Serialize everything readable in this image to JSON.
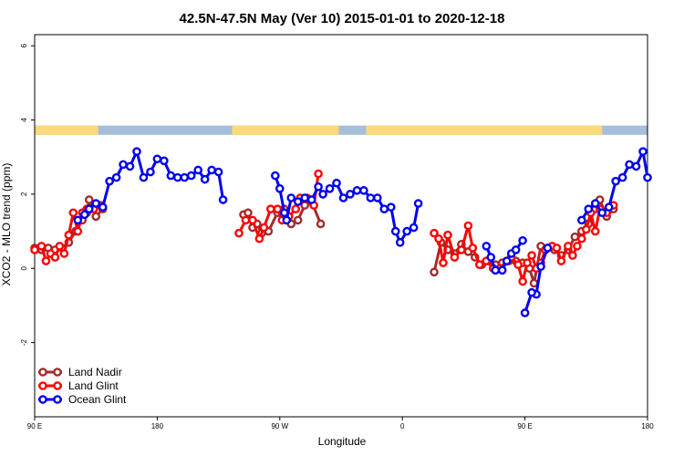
{
  "chart_data": {
    "type": "line",
    "title": "42.5N-47.5N May (Ver 10)   2015-01-01 to 2020-12-18",
    "xlabel": "Longitude",
    "ylabel": "XCO2 - MLO trend (ppm)",
    "xlim": [
      -90,
      180
    ],
    "ylim": [
      -4,
      6.3
    ],
    "x_ticks": [
      {
        "value": -90,
        "label": "90 E"
      },
      {
        "value": -36,
        "label": "180"
      },
      {
        "value": 18,
        "label": "90 W"
      },
      {
        "value": 72,
        "label": "0"
      },
      {
        "value": 126,
        "label": "90 E"
      },
      {
        "value": 180,
        "label": "180"
      }
    ],
    "y_ticks": [
      {
        "value": -2,
        "label": "-2"
      },
      {
        "value": 0,
        "label": "0"
      },
      {
        "value": 2,
        "label": "2"
      },
      {
        "value": 4,
        "label": "4"
      },
      {
        "value": 6,
        "label": "6"
      }
    ],
    "land_mask_band": {
      "y_range": [
        3.6,
        3.85
      ],
      "ocean_color": "#a6bddb",
      "land_color": "#fcd97a",
      "land_segments": [
        [
          -90,
          -62
        ],
        [
          -3,
          44
        ],
        [
          56,
          160
        ]
      ]
    },
    "legend_position": "bottom-left",
    "series": [
      {
        "name": "Land Nadir",
        "color": "#a52a2a",
        "segments": [
          [
            [
              -90,
              0.55
            ],
            [
              -87,
              0.5
            ],
            [
              -84,
              0.55
            ],
            [
              -81,
              0.5
            ],
            [
              -78,
              0.55
            ],
            [
              -75,
              0.7
            ],
            [
              -72,
              1.0
            ],
            [
              -69,
              1.3
            ],
            [
              -67,
              1.5
            ],
            [
              -66,
              1.85
            ],
            [
              -63,
              1.4
            ],
            [
              -60,
              1.6
            ]
          ],
          [
            [
              2,
              1.45
            ],
            [
              4,
              1.5
            ],
            [
              6,
              1.1
            ],
            [
              8,
              1.2
            ],
            [
              10,
              0.95
            ],
            [
              13,
              1.0
            ],
            [
              17,
              1.5
            ],
            [
              20,
              1.6
            ],
            [
              23,
              1.2
            ],
            [
              26,
              1.3
            ],
            [
              29,
              1.7
            ],
            [
              32,
              1.8
            ],
            [
              36,
              1.2
            ]
          ],
          [
            [
              86,
              -0.1
            ],
            [
              89,
              0.7
            ],
            [
              92,
              0.5
            ],
            [
              95,
              0.4
            ],
            [
              98,
              0.65
            ],
            [
              101,
              0.45
            ],
            [
              104,
              0.3
            ],
            [
              107,
              0.1
            ],
            [
              110,
              0.2
            ],
            [
              113,
              0.1
            ],
            [
              116,
              0.15
            ],
            [
              119,
              0.2
            ],
            [
              122,
              0.2
            ],
            [
              125,
              0.15
            ],
            [
              128,
              0.0
            ],
            [
              130,
              -0.4
            ],
            [
              133,
              0.6
            ],
            [
              136,
              0.55
            ],
            [
              139,
              0.5
            ],
            [
              142,
              0.35
            ],
            [
              145,
              0.5
            ],
            [
              148,
              0.85
            ],
            [
              151,
              1.0
            ],
            [
              154,
              1.2
            ],
            [
              157,
              1.6
            ],
            [
              159,
              1.85
            ],
            [
              162,
              1.4
            ],
            [
              165,
              1.6
            ]
          ]
        ]
      },
      {
        "name": "Land Glint",
        "color": "#ff0000",
        "segments": [
          [
            [
              -90,
              0.5
            ],
            [
              -87,
              0.6
            ],
            [
              -85,
              0.2
            ],
            [
              -83,
              0.4
            ],
            [
              -81,
              0.3
            ],
            [
              -79,
              0.6
            ],
            [
              -77,
              0.4
            ],
            [
              -75,
              0.9
            ],
            [
              -73,
              1.5
            ],
            [
              -71,
              1.0
            ],
            [
              -69,
              1.5
            ],
            [
              -67,
              1.6
            ],
            [
              -64,
              1.6
            ],
            [
              -61,
              1.7
            ]
          ],
          [
            [
              0,
              0.95
            ],
            [
              3,
              1.3
            ],
            [
              6,
              1.3
            ],
            [
              9,
              0.8
            ],
            [
              11,
              1.1
            ],
            [
              14,
              1.6
            ],
            [
              17,
              1.6
            ],
            [
              19,
              1.3
            ],
            [
              22,
              1.4
            ],
            [
              25,
              1.6
            ],
            [
              27,
              1.9
            ],
            [
              30,
              1.9
            ],
            [
              33,
              1.7
            ],
            [
              35,
              2.55
            ]
          ],
          [
            [
              86,
              0.95
            ],
            [
              88,
              0.8
            ],
            [
              90,
              0.15
            ],
            [
              92,
              0.9
            ],
            [
              95,
              0.3
            ],
            [
              98,
              0.5
            ],
            [
              101,
              1.15
            ],
            [
              103,
              0.55
            ],
            [
              106,
              0.1
            ],
            [
              109,
              0.2
            ],
            [
              112,
              0.0
            ],
            [
              115,
              0.0
            ],
            [
              118,
              0.2
            ],
            [
              120,
              0.3
            ],
            [
              123,
              0.1
            ],
            [
              125,
              -0.35
            ],
            [
              127,
              0.15
            ],
            [
              129,
              0.35
            ],
            [
              131,
              0.0
            ],
            [
              133,
              0.15
            ],
            [
              135,
              0.5
            ],
            [
              138,
              0.6
            ],
            [
              140,
              0.55
            ],
            [
              142,
              0.2
            ],
            [
              145,
              0.6
            ],
            [
              147,
              0.35
            ],
            [
              149,
              0.6
            ],
            [
              151,
              0.8
            ],
            [
              153,
              1.05
            ],
            [
              155,
              1.5
            ],
            [
              157,
              1.0
            ],
            [
              159,
              1.6
            ],
            [
              162,
              1.5
            ],
            [
              165,
              1.7
            ]
          ]
        ]
      },
      {
        "name": "Ocean Glint",
        "color": "#0000ee",
        "segments": [
          [
            [
              -71,
              1.3
            ],
            [
              -68,
              1.45
            ],
            [
              -66,
              1.6
            ],
            [
              -63,
              1.75
            ],
            [
              -60,
              1.65
            ],
            [
              -57,
              2.35
            ],
            [
              -54,
              2.45
            ],
            [
              -51,
              2.8
            ],
            [
              -48,
              2.75
            ],
            [
              -45,
              3.15
            ],
            [
              -42,
              2.45
            ],
            [
              -39,
              2.6
            ],
            [
              -36,
              2.95
            ],
            [
              -33,
              2.9
            ],
            [
              -30,
              2.5
            ],
            [
              -27,
              2.45
            ],
            [
              -24,
              2.45
            ],
            [
              -21,
              2.5
            ],
            [
              -18,
              2.65
            ],
            [
              -15,
              2.4
            ],
            [
              -12,
              2.65
            ],
            [
              -9,
              2.6
            ],
            [
              -7,
              1.85
            ]
          ],
          [
            [
              16,
              2.5
            ],
            [
              18,
              2.15
            ],
            [
              20,
              1.5
            ],
            [
              21,
              1.3
            ],
            [
              23,
              1.9
            ],
            [
              26,
              1.8
            ],
            [
              29,
              1.9
            ],
            [
              32,
              1.85
            ],
            [
              35,
              2.2
            ],
            [
              37,
              2.0
            ],
            [
              40,
              2.15
            ],
            [
              43,
              2.3
            ],
            [
              46,
              1.9
            ],
            [
              49,
              2.0
            ],
            [
              52,
              2.1
            ],
            [
              55,
              2.1
            ],
            [
              58,
              1.9
            ],
            [
              61,
              1.9
            ],
            [
              64,
              1.6
            ],
            [
              67,
              1.65
            ],
            [
              69,
              1.0
            ],
            [
              71,
              0.7
            ],
            [
              74,
              1.0
            ],
            [
              77,
              1.1
            ],
            [
              79,
              1.75
            ]
          ],
          [
            [
              109,
              0.6
            ],
            [
              111,
              0.3
            ],
            [
              113,
              -0.05
            ],
            [
              116,
              -0.05
            ],
            [
              118,
              0.2
            ],
            [
              120,
              0.4
            ],
            [
              122,
              0.5
            ],
            [
              125,
              0.75
            ]
          ],
          [
            [
              136,
              0.55
            ],
            [
              133,
              0.05
            ],
            [
              131,
              -0.7
            ],
            [
              129,
              -0.65
            ],
            [
              126,
              -1.2
            ]
          ],
          [
            [
              151,
              1.3
            ],
            [
              154,
              1.6
            ],
            [
              157,
              1.75
            ],
            [
              160,
              1.5
            ],
            [
              163,
              1.65
            ],
            [
              166,
              2.35
            ],
            [
              169,
              2.45
            ],
            [
              172,
              2.8
            ],
            [
              175,
              2.75
            ],
            [
              178,
              3.15
            ],
            [
              180,
              2.45
            ]
          ]
        ]
      }
    ]
  }
}
